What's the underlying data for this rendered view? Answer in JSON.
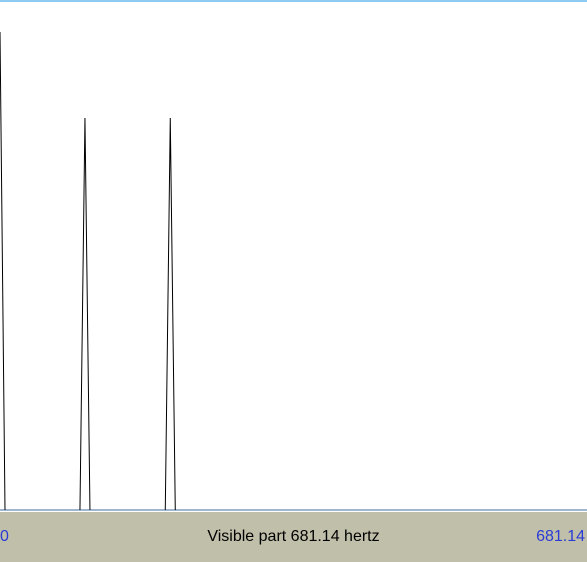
{
  "status_bar": {
    "range_start": "0",
    "visible_part_text": "Visible part 681.14 hertz",
    "range_end": "681.14"
  },
  "spectrum": {
    "peaks_hz": [
      0,
      98,
      197
    ],
    "relative_amplitudes": [
      1.0,
      0.82,
      0.82
    ],
    "visible_max_hz": 681.14,
    "line_color": "#000000",
    "baseline_color": "#9fb6cc"
  },
  "colors": {
    "top_border": "#8ecbf0",
    "status_bar_bg": "#c0bfa9",
    "range_text": "#2a3bd6"
  }
}
